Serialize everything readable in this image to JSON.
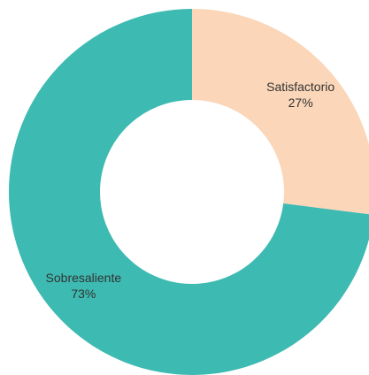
{
  "chart_data": {
    "type": "pie",
    "donut": true,
    "title": "",
    "categories": [
      "Satisfactorio",
      "Sobresaliente"
    ],
    "values": [
      27,
      73
    ],
    "labels": [
      "27%",
      "73%"
    ],
    "colors": [
      "#fbd6b8",
      "#3dbab2"
    ],
    "legend": "none"
  }
}
